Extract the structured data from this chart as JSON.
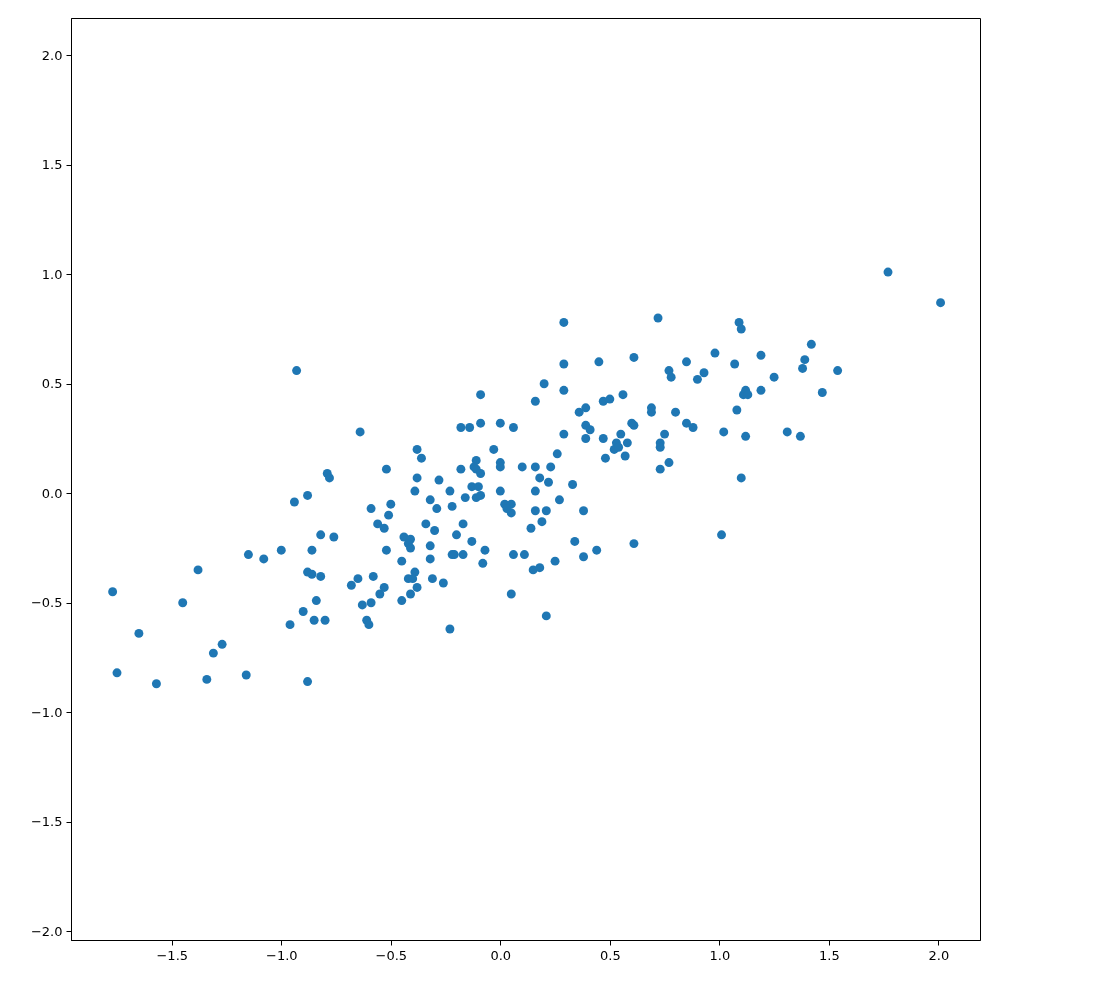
{
  "chart_data": {
    "type": "scatter",
    "marker": "circle",
    "grid": false,
    "xlim": [
      -1.96,
      2.19
    ],
    "ylim": [
      -2.04,
      2.17
    ],
    "xticks": [
      {
        "value": -1.5,
        "label": "−1.5"
      },
      {
        "value": -1.0,
        "label": "−1.0"
      },
      {
        "value": -0.5,
        "label": "−0.5"
      },
      {
        "value": 0.0,
        "label": "0.0"
      },
      {
        "value": 0.5,
        "label": "0.5"
      },
      {
        "value": 1.0,
        "label": "1.0"
      },
      {
        "value": 1.5,
        "label": "1.5"
      },
      {
        "value": 2.0,
        "label": "2.0"
      }
    ],
    "yticks": [
      {
        "value": -2.0,
        "label": "−2.0"
      },
      {
        "value": -1.5,
        "label": "−1.5"
      },
      {
        "value": -1.0,
        "label": "−1.0"
      },
      {
        "value": -0.5,
        "label": "−0.5"
      },
      {
        "value": 0.0,
        "label": "0.0"
      },
      {
        "value": 0.5,
        "label": "0.5"
      },
      {
        "value": 1.0,
        "label": "1.0"
      },
      {
        "value": 1.5,
        "label": "1.5"
      },
      {
        "value": 2.0,
        "label": "2.0"
      }
    ],
    "series": [
      {
        "color": "#1f77b4",
        "x": [
          -1.77,
          -1.75,
          -1.65,
          -1.57,
          -1.45,
          -1.38,
          -1.34,
          -1.31,
          -1.27,
          -1.16,
          -1.15,
          -1.08,
          -1.0,
          -0.96,
          -0.94,
          -0.93,
          -0.9,
          -0.88,
          -0.88,
          -0.88,
          -0.86,
          -0.86,
          -0.85,
          -0.84,
          -0.82,
          -0.82,
          -0.8,
          -0.79,
          -0.78,
          -0.76,
          -0.68,
          -0.65,
          -0.64,
          -0.63,
          -0.61,
          -0.6,
          -0.59,
          -0.59,
          -0.58,
          -0.56,
          -0.55,
          -0.53,
          -0.53,
          -0.52,
          -0.52,
          -0.51,
          -0.5,
          0.29,
          0.72,
          0.29,
          0.45,
          0.61,
          0.2,
          0.29,
          -0.09,
          0.16,
          0.47,
          0.5,
          0.56,
          0.69,
          0.69,
          0.39,
          0.36,
          -0.18,
          -0.14,
          -0.09,
          0.0,
          0.06,
          0.29,
          0.39,
          0.41,
          0.39,
          0.47,
          0.55,
          0.6,
          0.61,
          0.75,
          0.53,
          0.58,
          0.52,
          0.54,
          0.73,
          0.73,
          0.57,
          0.48,
          0.77,
          0.73,
          -0.38,
          -0.36,
          -0.03,
          -0.38,
          -0.28,
          -0.18,
          -0.11,
          -0.12,
          -0.11,
          -0.09,
          0.0,
          0.0,
          0.1,
          0.16,
          0.23,
          0.18,
          0.26,
          0.22,
          0.33,
          -0.13,
          -0.1,
          -0.39,
          -0.23,
          -0.16,
          -0.11,
          -0.09,
          -0.32,
          -0.22,
          -0.29,
          0.0,
          0.16,
          0.27,
          0.02,
          0.05,
          0.05,
          0.03,
          0.16,
          0.21,
          0.19,
          0.14,
          0.38,
          -0.34,
          -0.17,
          -0.3,
          -0.2,
          -0.44,
          -0.41,
          -0.42,
          -0.41,
          -0.32,
          -0.13,
          -0.32,
          -0.22,
          -0.21,
          -0.17,
          -0.07,
          -0.08,
          0.06,
          0.11,
          -0.45,
          0.34,
          0.44,
          0.38,
          0.61,
          0.25,
          0.15,
          0.18,
          -0.39,
          -0.42,
          -0.4,
          -0.31,
          -0.26,
          -0.38,
          -0.41,
          -0.45,
          0.05,
          0.21,
          -0.23,
          1.77,
          2.01,
          1.09,
          1.1,
          1.42,
          0.98,
          1.19,
          0.85,
          1.39,
          1.38,
          1.07,
          1.54,
          0.77,
          0.78,
          0.93,
          0.9,
          1.25,
          1.12,
          1.11,
          1.13,
          1.19,
          1.47,
          0.8,
          1.08,
          0.85,
          0.88,
          1.02,
          1.12,
          1.31,
          1.37,
          1.1,
          1.01
        ],
        "values": [
          -0.45,
          -0.82,
          -0.64,
          -0.87,
          -0.5,
          -0.35,
          -0.85,
          -0.73,
          -0.69,
          -0.83,
          -0.28,
          -0.3,
          -0.26,
          -0.6,
          -0.04,
          0.56,
          -0.54,
          -0.86,
          -0.01,
          -0.36,
          -0.26,
          -0.37,
          -0.58,
          -0.49,
          -0.38,
          -0.19,
          -0.58,
          0.09,
          0.07,
          -0.2,
          -0.42,
          -0.39,
          0.28,
          -0.51,
          -0.58,
          -0.6,
          -0.07,
          -0.5,
          -0.38,
          -0.14,
          -0.46,
          -0.43,
          -0.16,
          0.11,
          -0.26,
          -0.1,
          -0.05,
          0.78,
          0.8,
          0.59,
          0.6,
          0.62,
          0.5,
          0.47,
          0.45,
          0.42,
          0.42,
          0.43,
          0.45,
          0.39,
          0.37,
          0.39,
          0.37,
          0.3,
          0.3,
          0.32,
          0.32,
          0.3,
          0.27,
          0.31,
          0.29,
          0.25,
          0.25,
          0.27,
          0.32,
          0.31,
          0.27,
          0.23,
          0.23,
          0.2,
          0.21,
          0.23,
          0.21,
          0.17,
          0.16,
          0.14,
          0.11,
          0.2,
          0.16,
          0.2,
          0.07,
          0.06,
          0.11,
          0.15,
          0.12,
          0.11,
          0.09,
          0.14,
          0.12,
          0.12,
          0.12,
          0.12,
          0.07,
          0.18,
          0.05,
          0.04,
          0.03,
          0.03,
          0.01,
          0.01,
          -0.02,
          -0.02,
          -0.01,
          -0.03,
          -0.06,
          -0.07,
          0.01,
          0.01,
          -0.03,
          -0.05,
          -0.05,
          -0.09,
          -0.07,
          -0.08,
          -0.08,
          -0.13,
          -0.16,
          -0.08,
          -0.14,
          -0.14,
          -0.17,
          -0.19,
          -0.2,
          -0.21,
          -0.23,
          -0.25,
          -0.24,
          -0.22,
          -0.3,
          -0.28,
          -0.28,
          -0.28,
          -0.26,
          -0.32,
          -0.28,
          -0.28,
          -0.31,
          -0.22,
          -0.26,
          -0.29,
          -0.23,
          -0.31,
          -0.35,
          -0.34,
          -0.36,
          -0.39,
          -0.39,
          -0.39,
          -0.41,
          -0.43,
          -0.46,
          -0.49,
          -0.46,
          -0.56,
          -0.62,
          1.01,
          0.87,
          0.78,
          0.75,
          0.68,
          0.64,
          0.63,
          0.6,
          0.61,
          0.57,
          0.59,
          0.56,
          0.56,
          0.53,
          0.55,
          0.52,
          0.53,
          0.47,
          0.45,
          0.45,
          0.47,
          0.46,
          0.37,
          0.38,
          0.32,
          0.3,
          0.28,
          0.26,
          0.28,
          0.26,
          0.07,
          -0.19
        ]
      }
    ]
  }
}
